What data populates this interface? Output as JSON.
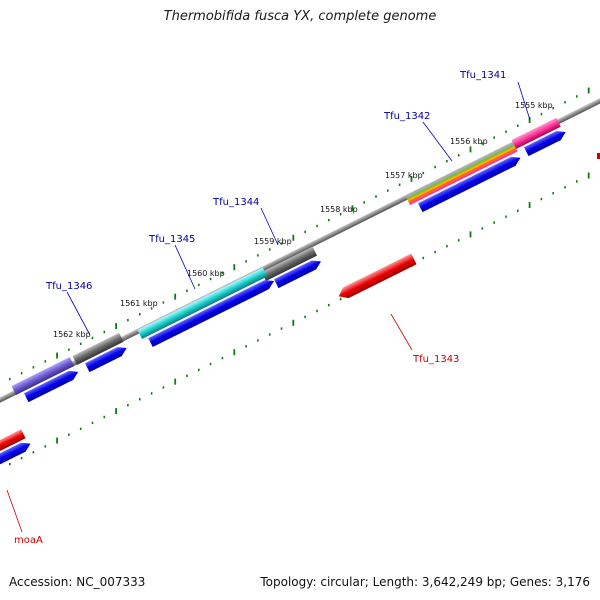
{
  "title": "Thermobifida fusca YX, complete genome",
  "footer": {
    "accession": "Accession: NC_007333",
    "topology": "Topology: circular; Length: 3,642,249 bp; Genes: 3,176"
  },
  "colors": {
    "backbone": "#8a8a8a",
    "tick": "#117a11",
    "cds": "#0000ee",
    "forward_label": "#000099",
    "reverse_label": "#cc0000",
    "reverse_gene": "#ee0000"
  },
  "kbp_labels": [
    "1555 kbp",
    "1556 kbp",
    "1557 kbp",
    "1558 kbp",
    "1559 kbp",
    "1560 kbp",
    "1561 kbp",
    "1562 kbp"
  ],
  "genes": [
    {
      "label": "Tfu_1341",
      "strand": "forward"
    },
    {
      "label": "Tfu_1342",
      "strand": "forward"
    },
    {
      "label": "Tfu_1343",
      "strand": "reverse"
    },
    {
      "label": "Tfu_1344",
      "strand": "forward"
    },
    {
      "label": "Tfu_1345",
      "strand": "forward"
    },
    {
      "label": "Tfu_1346",
      "strand": "forward"
    },
    {
      "label": "moaA",
      "strand": "reverse"
    }
  ]
}
